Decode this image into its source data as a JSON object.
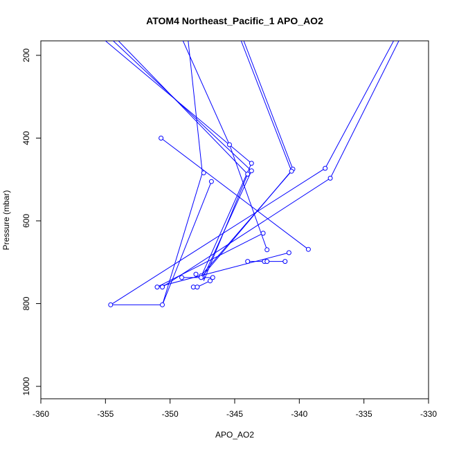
{
  "chart_data": {
    "type": "line",
    "title": "ATOM4 Northeast_Pacific_1 APO_AO2",
    "xlabel": "APO_AO2",
    "ylabel": "Pressure (mbar)",
    "xlim": [
      -360,
      -330
    ],
    "ylim": [
      1030,
      165
    ],
    "y_axis_inverted": true,
    "grid": false,
    "legend": "none",
    "x_ticks": [
      "-360",
      "-355",
      "-350",
      "-345",
      "-340",
      "-335",
      "-330"
    ],
    "y_ticks": [
      "200",
      "400",
      "600",
      "800",
      "1000"
    ],
    "series_color": "#0000ff",
    "marker": "open-circle",
    "series": [
      {
        "type": "points",
        "points": [
          [
            -350.7,
            400
          ],
          [
            -345.4,
            416
          ],
          [
            -343.7,
            461
          ],
          [
            -343.7,
            479
          ],
          [
            -344.0,
            487
          ],
          [
            -340.5,
            475
          ],
          [
            -340.6,
            480
          ],
          [
            -338.0,
            473
          ],
          [
            -337.6,
            497
          ],
          [
            -347.4,
            484
          ],
          [
            -346.8,
            505
          ],
          [
            -342.8,
            630
          ],
          [
            -342.5,
            670
          ],
          [
            -339.3,
            669
          ],
          [
            -340.8,
            677
          ],
          [
            -344.0,
            698
          ],
          [
            -342.7,
            698
          ],
          [
            -342.5,
            698
          ],
          [
            -341.1,
            698
          ],
          [
            -348.0,
            729
          ],
          [
            -347.6,
            733
          ],
          [
            -347.5,
            736
          ],
          [
            -347.6,
            737
          ],
          [
            -346.7,
            737
          ],
          [
            -349.1,
            737
          ],
          [
            -346.9,
            745
          ],
          [
            -348.2,
            760
          ],
          [
            -347.9,
            760
          ],
          [
            -351.0,
            760
          ],
          [
            -350.6,
            760
          ],
          [
            -354.6,
            803
          ],
          [
            -350.6,
            803
          ]
        ]
      },
      {
        "type": "path",
        "points": [
          [
            -354.6,
            803
          ],
          [
            -350.6,
            803
          ],
          [
            -347.5,
            484
          ],
          [
            -348.6,
            165
          ]
        ]
      },
      {
        "type": "path",
        "points": [
          [
            -350.7,
            400
          ],
          [
            -339.3,
            669
          ]
        ]
      },
      {
        "type": "path",
        "points": [
          [
            -355.0,
            165
          ],
          [
            -343.7,
            461
          ],
          [
            -347.6,
            735
          ]
        ]
      },
      {
        "type": "path",
        "points": [
          [
            -354.4,
            165
          ],
          [
            -343.7,
            479
          ],
          [
            -347.5,
            741
          ]
        ]
      },
      {
        "type": "path",
        "points": [
          [
            -354.0,
            165
          ],
          [
            -344.0,
            487
          ],
          [
            -347.4,
            745
          ]
        ]
      },
      {
        "type": "path",
        "points": [
          [
            -349.0,
            165
          ],
          [
            -345.4,
            416
          ],
          [
            -342.5,
            670
          ]
        ]
      },
      {
        "type": "path",
        "points": [
          [
            -344.5,
            165
          ],
          [
            -340.6,
            480
          ],
          [
            -347.7,
            736
          ]
        ]
      },
      {
        "type": "path",
        "points": [
          [
            -344.3,
            165
          ],
          [
            -340.5,
            475
          ],
          [
            -347.6,
            737
          ]
        ]
      },
      {
        "type": "path",
        "points": [
          [
            -332.7,
            165
          ],
          [
            -338.0,
            473
          ],
          [
            -354.6,
            803
          ]
        ]
      },
      {
        "type": "path",
        "points": [
          [
            -332.3,
            165
          ],
          [
            -337.6,
            497
          ],
          [
            -350.6,
            760
          ]
        ]
      },
      {
        "type": "path",
        "points": [
          [
            -346.8,
            505
          ],
          [
            -350.6,
            803
          ]
        ]
      },
      {
        "type": "path",
        "points": [
          [
            -342.8,
            630
          ],
          [
            -351.0,
            760
          ]
        ]
      },
      {
        "type": "path",
        "points": [
          [
            -344.0,
            698
          ],
          [
            -342.7,
            698
          ],
          [
            -342.5,
            698
          ],
          [
            -341.1,
            698
          ]
        ]
      },
      {
        "type": "path",
        "points": [
          [
            -349.1,
            737
          ],
          [
            -346.7,
            737
          ]
        ]
      },
      {
        "type": "path",
        "points": [
          [
            -348.2,
            760
          ],
          [
            -347.9,
            760
          ],
          [
            -346.9,
            745
          ]
        ]
      },
      {
        "type": "path",
        "points": [
          [
            -351.0,
            760
          ],
          [
            -340.8,
            677
          ]
        ]
      }
    ]
  }
}
